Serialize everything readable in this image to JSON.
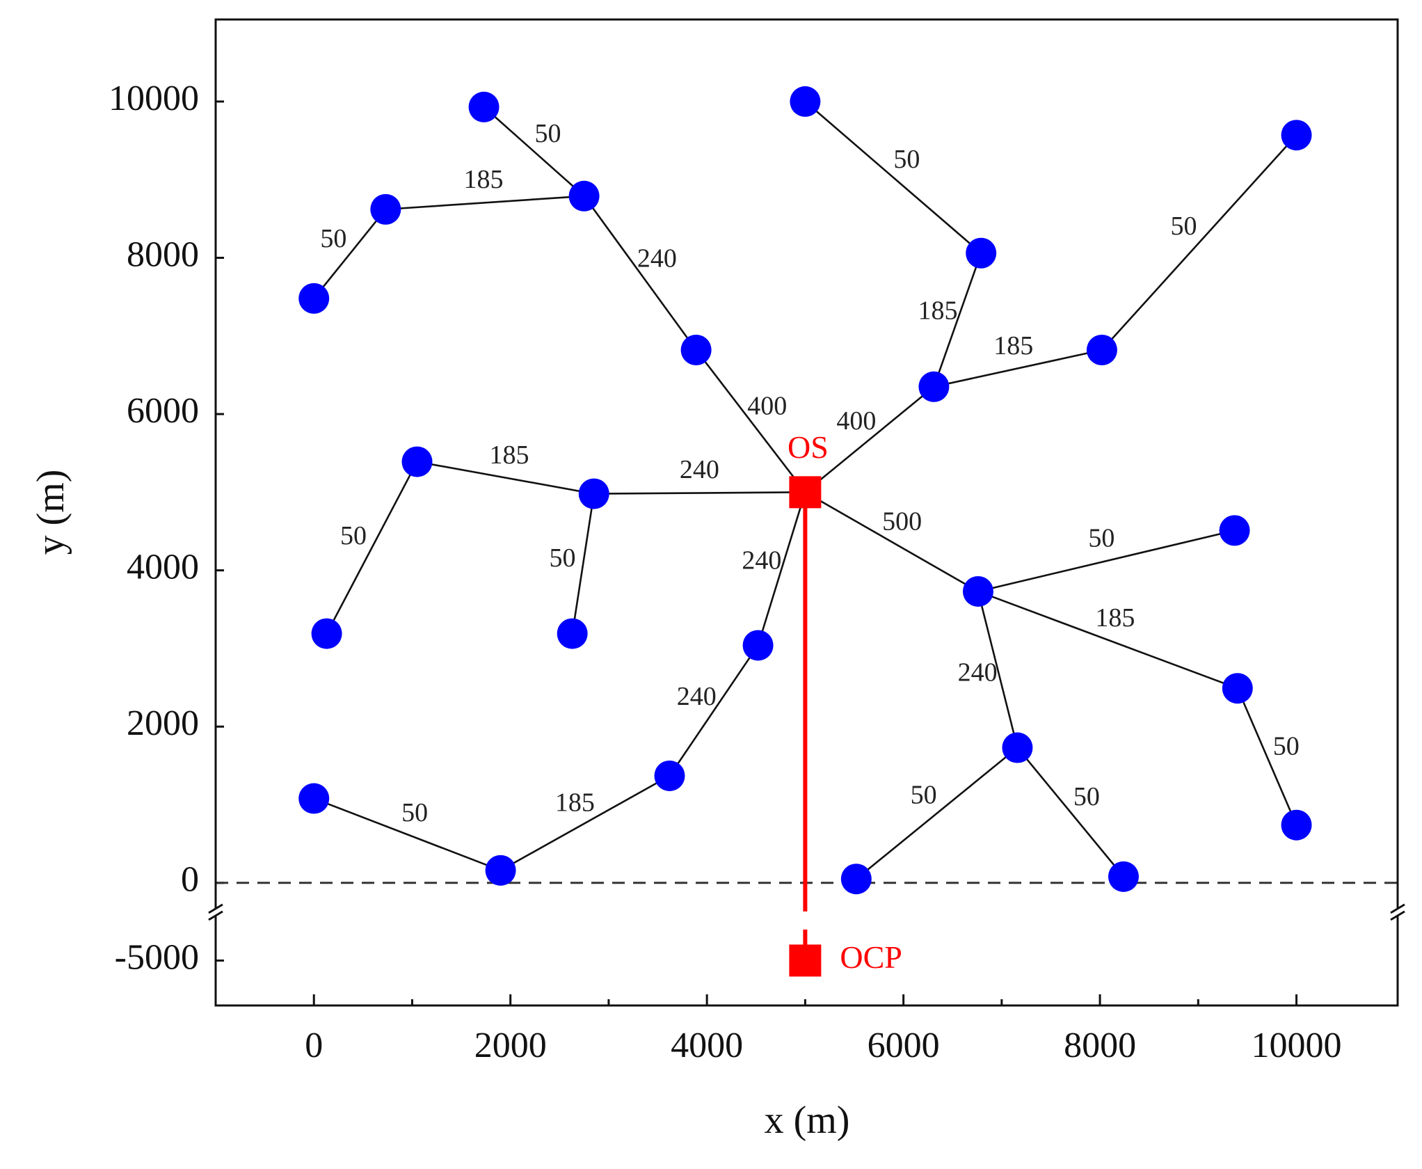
{
  "chart_data": {
    "type": "network",
    "xlabel": "x (m)",
    "ylabel": "y (m)",
    "xlim": [
      -1000,
      11030
    ],
    "ylim": [
      -5575,
      11050
    ],
    "ybreak": [
      -4425,
      -330
    ],
    "xticks": [
      0,
      2000,
      4000,
      6000,
      8000,
      10000
    ],
    "xminorticks": [
      1000,
      3000,
      5000,
      7000,
      9000
    ],
    "yticks": [
      -5000,
      0,
      2000,
      4000,
      6000,
      8000,
      10000
    ],
    "reference_line": {
      "y": 0,
      "color": "#333333",
      "style": "dashed"
    },
    "nodes": {
      "color": "#0000ff",
      "x": [
        1730,
        2750,
        730,
        0,
        3890,
        5000,
        6790,
        10000,
        8020,
        6310,
        1050,
        2850,
        130,
        2630,
        4520,
        6760,
        9370,
        9400,
        7160,
        3620,
        0,
        1900,
        5520,
        8240,
        10000
      ],
      "y": [
        9930,
        8790,
        8620,
        7480,
        6820,
        10000,
        8060,
        9570,
        6820,
        6350,
        5390,
        4980,
        3190,
        3190,
        3040,
        3730,
        4510,
        2490,
        1730,
        1370,
        1080,
        160,
        50,
        80,
        740
      ]
    },
    "series": [
      {
        "name": "OS",
        "color": "#ff0000",
        "x": [
          5000
        ],
        "y": [
          5000
        ]
      },
      {
        "name": "OCP",
        "color": "#ff0000",
        "x": [
          5000
        ],
        "y": [
          -5000
        ]
      }
    ],
    "edges": [
      {
        "from": 0,
        "to": 1,
        "label": 50
      },
      {
        "from": 2,
        "to": 1,
        "label": 185
      },
      {
        "from": 3,
        "to": 2,
        "label": 50
      },
      {
        "from": 1,
        "to": 4,
        "label": 240
      },
      {
        "from": 4,
        "to": "OS",
        "label": 400
      },
      {
        "from": 5,
        "to": 6,
        "label": 50
      },
      {
        "from": 6,
        "to": 9,
        "label": 185
      },
      {
        "from": 9,
        "to": 8,
        "label": 185
      },
      {
        "from": 8,
        "to": 7,
        "label": 50
      },
      {
        "from": "OS",
        "to": 9,
        "label": 400
      },
      {
        "from": "OS",
        "to": 15,
        "label": 500
      },
      {
        "from": 15,
        "to": 16,
        "label": 50
      },
      {
        "from": 15,
        "to": 17,
        "label": 185
      },
      {
        "from": 17,
        "to": 24,
        "label": 50
      },
      {
        "from": 15,
        "to": 18,
        "label": 240
      },
      {
        "from": 22,
        "to": 18,
        "label": 50
      },
      {
        "from": 18,
        "to": 23,
        "label": 50
      },
      {
        "from": 11,
        "to": "OS",
        "label": 240
      },
      {
        "from": 10,
        "to": 11,
        "label": 185
      },
      {
        "from": 12,
        "to": 10,
        "label": 50
      },
      {
        "from": 13,
        "to": 11,
        "label": 50
      },
      {
        "from": 14,
        "to": "OS",
        "label": 240
      },
      {
        "from": 19,
        "to": 14,
        "label": 240
      },
      {
        "from": 21,
        "to": 19,
        "label": 185
      },
      {
        "from": 20,
        "to": 21,
        "label": 50
      }
    ],
    "export_cable": {
      "from": "OS",
      "to": "OCP",
      "color": "#ff0000"
    }
  }
}
